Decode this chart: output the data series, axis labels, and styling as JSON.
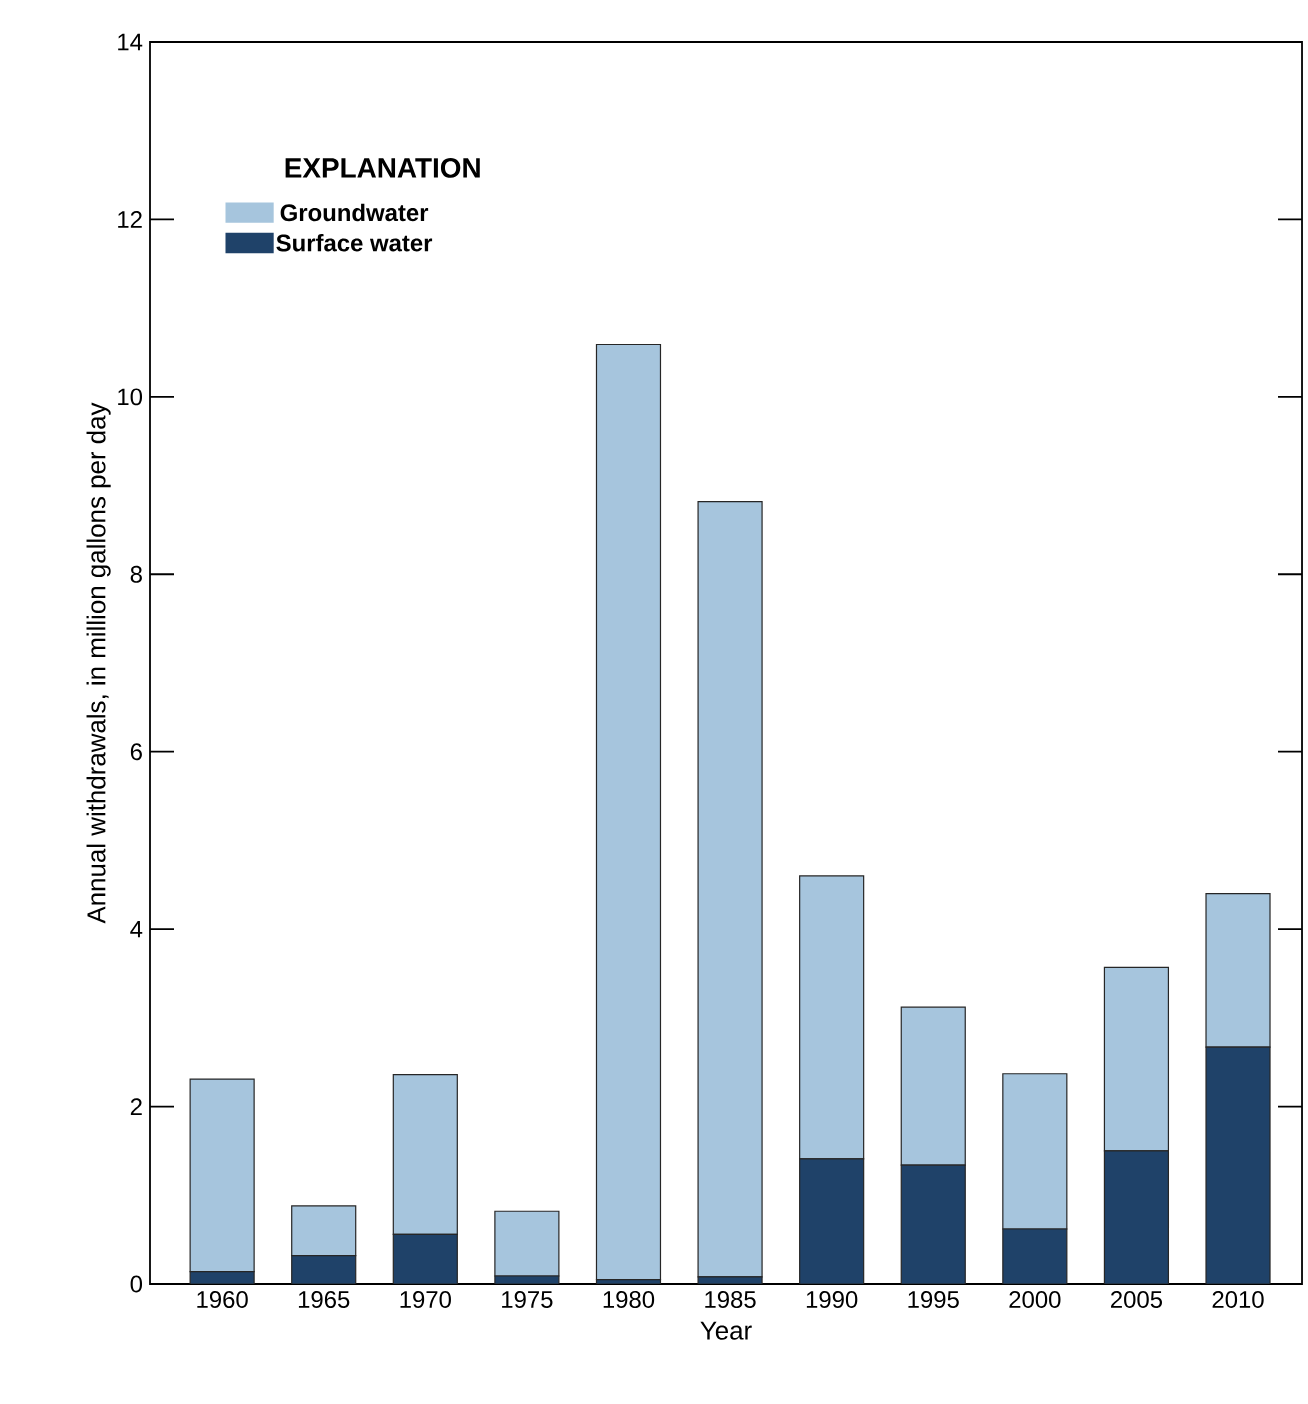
{
  "chart_data": {
    "type": "bar",
    "stacked": true,
    "xlabel": "Year",
    "ylabel": "Annual withdrawals, in million gallons per day",
    "legend_title": "EXPLANATION",
    "legend": "top left",
    "categories": [
      "1960",
      "1965",
      "1970",
      "1975",
      "1980",
      "1985",
      "1990",
      "1995",
      "2000",
      "2005",
      "2010"
    ],
    "series": [
      {
        "name": "Surface water",
        "color": "#1f4269",
        "values": [
          0.14,
          0.32,
          0.56,
          0.09,
          0.05,
          0.08,
          1.41,
          1.34,
          0.62,
          1.5,
          2.67
        ]
      },
      {
        "name": "Groundwater",
        "color": "#a6c5dd",
        "values": [
          2.17,
          0.56,
          1.8,
          0.73,
          10.54,
          8.74,
          3.19,
          1.78,
          1.75,
          2.07,
          1.73
        ]
      }
    ],
    "ylim": [
      0,
      14
    ],
    "yticks": [
      0,
      2,
      4,
      6,
      8,
      10,
      12,
      14
    ]
  }
}
